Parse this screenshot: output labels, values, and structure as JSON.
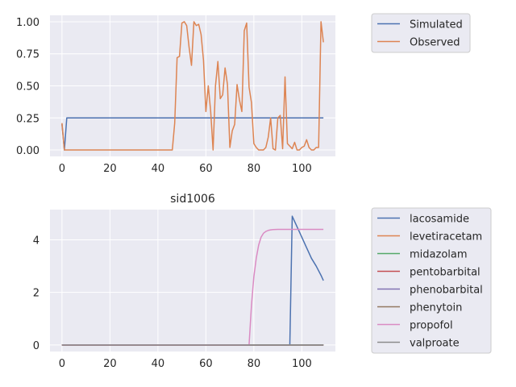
{
  "chart_data": [
    {
      "type": "line",
      "title": "",
      "xlabel": "",
      "ylabel": "",
      "xlim": [
        -5,
        114
      ],
      "ylim": [
        -0.05,
        1.05
      ],
      "xticks": [
        "0",
        "20",
        "40",
        "60",
        "80",
        "100"
      ],
      "yticks": [
        "0.00",
        "0.25",
        "0.50",
        "0.75",
        "1.00"
      ],
      "grid": true,
      "legend_position": "outside-right",
      "series": [
        {
          "name": "Simulated",
          "color": "#4c72b0",
          "x": [
            0,
            1,
            2,
            109
          ],
          "y": [
            0.2,
            0.0,
            0.25,
            0.25
          ]
        },
        {
          "name": "Observed",
          "color": "#dd8452",
          "x": [
            0,
            1,
            2,
            10,
            20,
            30,
            40,
            46,
            47,
            48,
            49,
            50,
            51,
            52,
            53,
            54,
            55,
            56,
            57,
            58,
            59,
            60,
            61,
            62,
            63,
            64,
            65,
            66,
            67,
            68,
            69,
            70,
            71,
            72,
            73,
            74,
            75,
            76,
            77,
            78,
            79,
            80,
            81,
            82,
            83,
            84,
            85,
            86,
            87,
            88,
            89,
            90,
            91,
            92,
            93,
            94,
            95,
            96,
            97,
            98,
            99,
            100,
            101,
            102,
            103,
            104,
            105,
            106,
            107,
            108,
            109
          ],
          "y": [
            0.21,
            0.0,
            0.0,
            0.0,
            0.0,
            0.0,
            0.0,
            0.0,
            0.21,
            0.72,
            0.73,
            0.99,
            1.0,
            0.97,
            0.8,
            0.66,
            1.0,
            0.97,
            0.98,
            0.9,
            0.7,
            0.3,
            0.5,
            0.3,
            0.0,
            0.5,
            0.69,
            0.4,
            0.43,
            0.64,
            0.51,
            0.02,
            0.15,
            0.2,
            0.51,
            0.39,
            0.3,
            0.93,
            0.99,
            0.49,
            0.37,
            0.05,
            0.02,
            0.0,
            0.0,
            0.0,
            0.02,
            0.1,
            0.25,
            0.01,
            0.0,
            0.25,
            0.27,
            0.01,
            0.57,
            0.05,
            0.03,
            0.01,
            0.06,
            0.0,
            0.0,
            0.02,
            0.03,
            0.08,
            0.02,
            0.0,
            0.0,
            0.02,
            0.02,
            1.0,
            0.84
          ]
        }
      ]
    },
    {
      "type": "line",
      "title": "sid1006",
      "xlabel": "",
      "ylabel": "",
      "xlim": [
        -5,
        114
      ],
      "ylim": [
        -0.25,
        5.15
      ],
      "xticks": [
        "0",
        "20",
        "40",
        "60",
        "80",
        "100"
      ],
      "yticks": [
        "0",
        "2",
        "4"
      ],
      "grid": true,
      "legend_position": "outside-right",
      "series": [
        {
          "name": "lacosamide",
          "color": "#4c72b0",
          "x": [
            0,
            95,
            96,
            98,
            100,
            102,
            104,
            106,
            108,
            109
          ],
          "y": [
            0.0,
            0.0,
            4.9,
            4.5,
            4.1,
            3.7,
            3.3,
            3.0,
            2.65,
            2.45
          ]
        },
        {
          "name": "levetiracetam",
          "color": "#dd8452",
          "x": [
            0,
            109
          ],
          "y": [
            0.0,
            0.0
          ]
        },
        {
          "name": "midazolam",
          "color": "#55a868",
          "x": [
            0,
            109
          ],
          "y": [
            0.0,
            0.0
          ]
        },
        {
          "name": "pentobarbital",
          "color": "#c44e52",
          "x": [
            0,
            109
          ],
          "y": [
            0.0,
            0.0
          ]
        },
        {
          "name": "phenobarbital",
          "color": "#8172b3",
          "x": [
            0,
            109
          ],
          "y": [
            0.0,
            0.0
          ]
        },
        {
          "name": "phenytoin",
          "color": "#937860",
          "x": [
            0,
            109
          ],
          "y": [
            0.0,
            0.0
          ]
        },
        {
          "name": "propofol",
          "color": "#da8bc3",
          "x": [
            0,
            78,
            79,
            80,
            81,
            82,
            83,
            84,
            85,
            86,
            87,
            88,
            90,
            92,
            95,
            100,
            109
          ],
          "y": [
            0.0,
            0.0,
            1.5,
            2.6,
            3.3,
            3.8,
            4.1,
            4.25,
            4.32,
            4.36,
            4.38,
            4.39,
            4.4,
            4.4,
            4.4,
            4.4,
            4.4
          ]
        },
        {
          "name": "valproate",
          "color": "#8c8c8c",
          "x": [
            0,
            109
          ],
          "y": [
            0.0,
            0.0
          ]
        }
      ]
    }
  ]
}
